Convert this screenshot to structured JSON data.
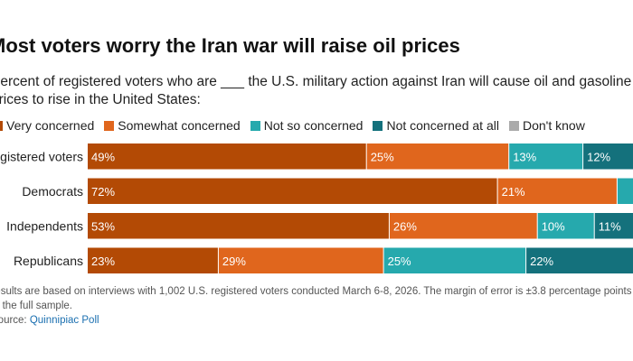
{
  "chart_data": {
    "type": "bar",
    "orientation": "horizontal",
    "stacked": true,
    "title": "Most voters worry the Iran war will raise oil prices",
    "subtitle": "Percent of registered voters who are ___ the U.S. military action against Iran will cause oil and gasoline prices to rise in the United States:",
    "categories": [
      "Registered voters",
      "Democrats",
      "Independents",
      "Republicans"
    ],
    "series": [
      {
        "name": "Very concerned",
        "color": "#b34a05",
        "values": [
          49,
          72,
          53,
          23
        ],
        "labels": [
          "49%",
          "72%",
          "53%",
          "23%"
        ]
      },
      {
        "name": "Somewhat concerned",
        "color": "#e0661d",
        "values": [
          25,
          21,
          26,
          29
        ],
        "labels": [
          "25%",
          "21%",
          "26%",
          "29%"
        ]
      },
      {
        "name": "Not so concerned",
        "color": "#26a9ad",
        "values": [
          13,
          3,
          10,
          25
        ],
        "labels": [
          "13%",
          "",
          "10%",
          "25%"
        ]
      },
      {
        "name": "Not concerned at all",
        "color": "#14717c",
        "values": [
          12,
          3,
          11,
          22
        ],
        "labels": [
          "12%",
          "",
          "11%",
          "22%"
        ]
      },
      {
        "name": "Don't know",
        "color": "#aaaaaa",
        "values": [
          1,
          1,
          0,
          1
        ],
        "labels": [
          "",
          "",
          "",
          ""
        ]
      }
    ],
    "xlim": [
      0,
      100
    ],
    "grid": false,
    "legend": "top"
  },
  "note": "Results are based on interviews with 1,002 U.S. registered voters conducted March 6-8, 2026. The margin of error is ±3.8 percentage points for the full sample.",
  "source": {
    "label": "Source:",
    "link_text": "Quinnipiac Poll"
  }
}
